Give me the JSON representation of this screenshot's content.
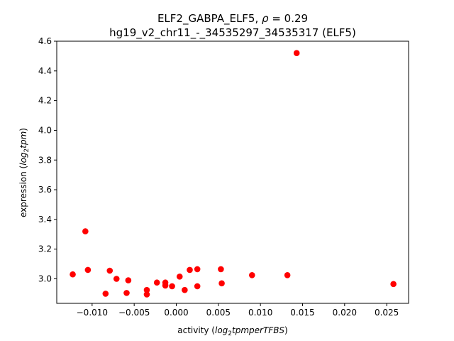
{
  "chart_data": {
    "type": "scatter",
    "title_line1_main": "ELF2_GABPA_ELF5, ",
    "title_line1_rho": "ρ",
    "title_line1_eq": " = 0.29",
    "title_line2": "hg19_v2_chr11_-_34535297_34535317 (ELF5)",
    "xlabel_prefix": "activity (",
    "xlabel_math": "log",
    "xlabel_sub": "2",
    "xlabel_math2": "tpmperTFBS",
    "xlabel_suffix": ")",
    "ylabel_prefix": "expression (",
    "ylabel_math": "log",
    "ylabel_sub": "2",
    "ylabel_math2": "tpm",
    "ylabel_suffix": ")",
    "xlim": [
      -0.0142,
      0.0276
    ],
    "ylim": [
      2.835,
      4.6
    ],
    "xticks": [
      -0.01,
      -0.005,
      0.0,
      0.005,
      0.01,
      0.015,
      0.02,
      0.025
    ],
    "xtick_labels": [
      "−0.010",
      "−0.005",
      "0.000",
      "0.005",
      "0.010",
      "0.015",
      "0.020",
      "0.025"
    ],
    "yticks": [
      3.0,
      3.2,
      3.4,
      3.6,
      3.8,
      4.0,
      4.2,
      4.4,
      4.6
    ],
    "ytick_labels": [
      "3.0",
      "3.2",
      "3.4",
      "3.6",
      "3.8",
      "4.0",
      "4.2",
      "4.4",
      "4.6"
    ],
    "marker_color": "#ff0000",
    "points": [
      {
        "x": -0.0123,
        "y": 3.03
      },
      {
        "x": -0.0108,
        "y": 3.32
      },
      {
        "x": -0.0105,
        "y": 3.06
      },
      {
        "x": -0.0084,
        "y": 2.9
      },
      {
        "x": -0.0079,
        "y": 3.055
      },
      {
        "x": -0.0071,
        "y": 3.0
      },
      {
        "x": -0.0059,
        "y": 2.905
      },
      {
        "x": -0.0057,
        "y": 2.99
      },
      {
        "x": -0.0035,
        "y": 2.895
      },
      {
        "x": -0.0035,
        "y": 2.925
      },
      {
        "x": -0.0023,
        "y": 2.975
      },
      {
        "x": -0.0013,
        "y": 2.975
      },
      {
        "x": -0.0013,
        "y": 2.955
      },
      {
        "x": -0.0005,
        "y": 2.95
      },
      {
        "x": 0.0004,
        "y": 3.015
      },
      {
        "x": 0.001,
        "y": 2.925
      },
      {
        "x": 0.0016,
        "y": 3.06
      },
      {
        "x": 0.0025,
        "y": 3.065
      },
      {
        "x": 0.0025,
        "y": 2.95
      },
      {
        "x": 0.0053,
        "y": 3.065
      },
      {
        "x": 0.0054,
        "y": 2.97
      },
      {
        "x": 0.009,
        "y": 3.025
      },
      {
        "x": 0.0132,
        "y": 3.025
      },
      {
        "x": 0.0143,
        "y": 4.52
      },
      {
        "x": 0.0258,
        "y": 2.965
      }
    ]
  }
}
